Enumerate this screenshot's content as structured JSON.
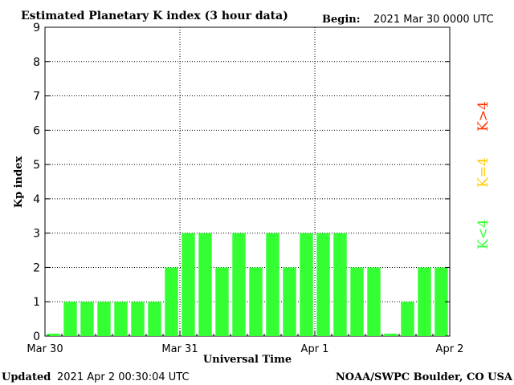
{
  "header": {
    "title": "Estimated Planetary K index (3 hour data)",
    "begin_label": "Begin:",
    "begin_value": "2021 Mar 30 0000 UTC"
  },
  "footer": {
    "updated_label": "Updated",
    "updated_value": "2021 Apr  2 00:30:04 UTC",
    "source": "NOAA/SWPC Boulder, CO USA"
  },
  "legend": {
    "gt4": "K>4",
    "eq4": "K=4",
    "lt4": "K<4",
    "colors": {
      "gt4": "#ff3300",
      "eq4": "#ffcc00",
      "lt4": "#33ff33"
    }
  },
  "chart_data": {
    "type": "bar",
    "title": "Estimated Planetary K index (3 hour data)",
    "xlabel": "Universal Time",
    "ylabel": "Kp index",
    "ylim": [
      0,
      9
    ],
    "yticks": [
      "0",
      "1",
      "2",
      "3",
      "4",
      "5",
      "6",
      "7",
      "8",
      "9"
    ],
    "xticks": [
      "Mar 30",
      "Mar 31",
      "Apr 1",
      "Apr 2"
    ],
    "grid": true,
    "bar_color": "#33ff33",
    "values": [
      0,
      1,
      1,
      1,
      1,
      1,
      1,
      2,
      3,
      3,
      2,
      3,
      2,
      3,
      2,
      3,
      3,
      3,
      2,
      2,
      0,
      1,
      2,
      2
    ]
  }
}
